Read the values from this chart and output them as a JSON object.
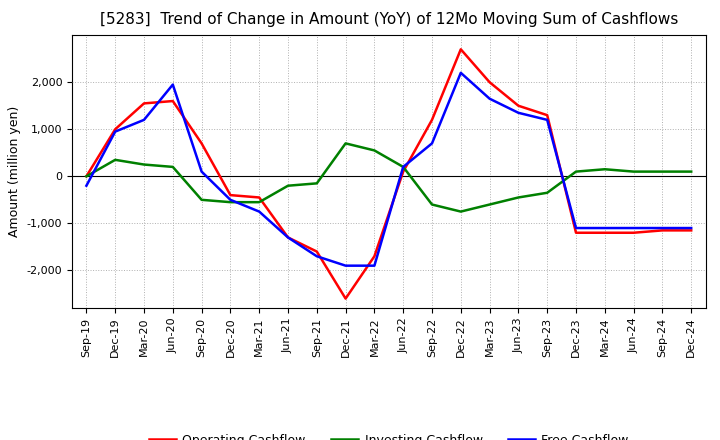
{
  "title": "[5283]  Trend of Change in Amount (YoY) of 12Mo Moving Sum of Cashflows",
  "ylabel": "Amount (million yen)",
  "x_labels": [
    "Sep-19",
    "Dec-19",
    "Mar-20",
    "Jun-20",
    "Sep-20",
    "Dec-20",
    "Mar-21",
    "Jun-21",
    "Sep-21",
    "Dec-21",
    "Mar-22",
    "Jun-22",
    "Sep-22",
    "Dec-22",
    "Mar-23",
    "Jun-23",
    "Sep-23",
    "Dec-23",
    "Mar-24",
    "Jun-24",
    "Sep-24",
    "Dec-24"
  ],
  "operating": [
    0,
    1000,
    1550,
    1600,
    700,
    -400,
    -450,
    -1300,
    -1600,
    -2600,
    -1700,
    100,
    1200,
    2700,
    2000,
    1500,
    1300,
    -1200,
    -1200,
    -1200,
    -1150,
    -1150
  ],
  "investing": [
    0,
    350,
    250,
    200,
    -500,
    -550,
    -550,
    -200,
    -150,
    700,
    550,
    200,
    -600,
    -750,
    -600,
    -450,
    -350,
    100,
    150,
    100,
    100,
    100
  ],
  "free": [
    -200,
    950,
    1200,
    1950,
    100,
    -500,
    -750,
    -1300,
    -1700,
    -1900,
    -1900,
    200,
    700,
    2200,
    1650,
    1350,
    1200,
    -1100,
    -1100,
    -1100,
    -1100,
    -1100
  ],
  "operating_color": "#ff0000",
  "investing_color": "#008000",
  "free_color": "#0000ff",
  "ylim": [
    -2800,
    3000
  ],
  "yticks": [
    -2000,
    -1000,
    0,
    1000,
    2000
  ],
  "bg_color": "#ffffff",
  "grid_color": "#b0b0b0",
  "title_fontsize": 11,
  "axis_fontsize": 9,
  "tick_fontsize": 8,
  "legend_fontsize": 9,
  "linewidth": 1.8
}
